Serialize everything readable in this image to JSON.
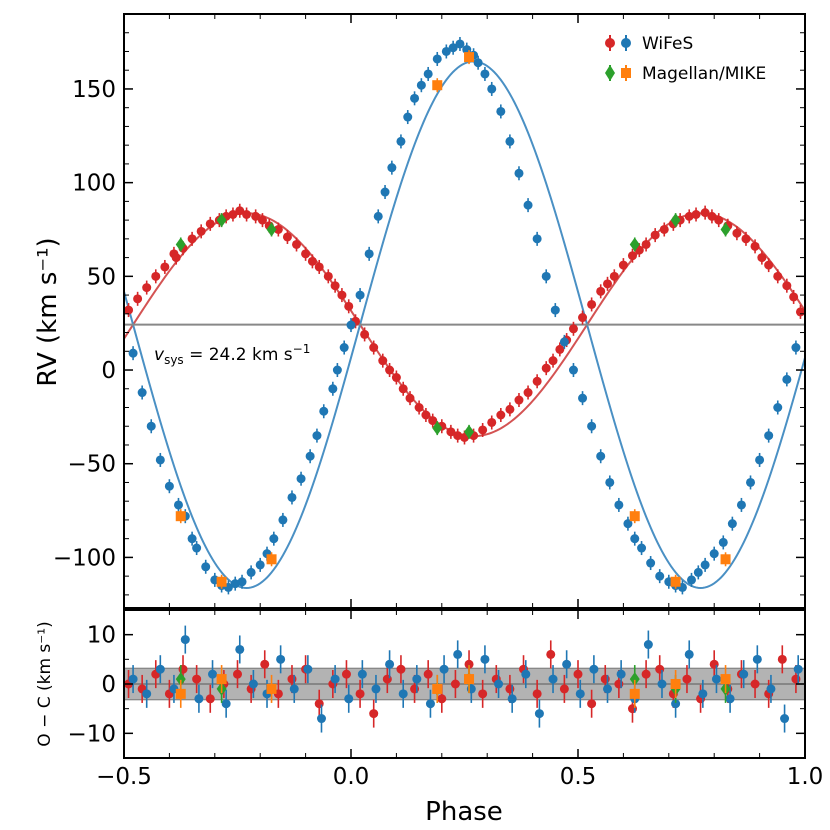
{
  "chart_data": [
    {
      "type": "scatter",
      "panel": "rv",
      "xlabel": "Phase",
      "ylabel": "RV (km s⁻¹)",
      "xlim": [
        -0.5,
        1.0
      ],
      "ylim": [
        -127,
        190
      ],
      "xticks": [
        -0.5,
        0.0,
        0.5,
        1.0
      ],
      "xtick_labels": [
        "−0.5",
        "0.0",
        "0.5",
        "1.0"
      ],
      "yticks": [
        -100,
        -50,
        0,
        50,
        100,
        150
      ],
      "ytick_labels": [
        "−100",
        "−50",
        "0",
        "50",
        "100",
        "150"
      ],
      "systemic_velocity": 24.2,
      "annotation": {
        "symbol": "v",
        "subscript": "sys",
        "text": " = 24.2 km s",
        "superscript": "−1"
      },
      "legend": {
        "position": "top-right",
        "entries": [
          {
            "label": "WiFeS",
            "markers": [
              "circle-red",
              "circle-blue"
            ]
          },
          {
            "label": "Magellan/MIKE",
            "markers": [
              "diamond-green",
              "square-orange"
            ]
          }
        ]
      },
      "model": {
        "primary": {
          "name": "Primary model (red)",
          "gamma": 24.2,
          "K": 59.5,
          "peak_phase": 0.77
        },
        "secondary": {
          "name": "Secondary model (blue)",
          "gamma": 24.2,
          "K": -140.5,
          "peak_phase": 0.77
        }
      },
      "series": [
        {
          "name": "WiFeS primary",
          "color": "#d62728",
          "marker": "circle",
          "x": [
            -0.49,
            -0.47,
            -0.45,
            -0.43,
            -0.41,
            -0.39,
            -0.385,
            -0.37,
            -0.35,
            -0.33,
            -0.31,
            -0.29,
            -0.275,
            -0.26,
            -0.245,
            -0.23,
            -0.21,
            -0.195,
            -0.18,
            -0.16,
            -0.14,
            -0.12,
            -0.1,
            -0.085,
            -0.07,
            -0.05,
            -0.035,
            -0.02,
            -0.005,
            0.01,
            0.03,
            0.05,
            0.07,
            0.085,
            0.1,
            0.115,
            0.13,
            0.15,
            0.165,
            0.18,
            0.2,
            0.22,
            0.235,
            0.25,
            0.27,
            0.29,
            0.31,
            0.33,
            0.35,
            0.37,
            0.39,
            0.41,
            0.43,
            0.445,
            0.46,
            0.475,
            0.49,
            0.51,
            0.53,
            0.55,
            0.565,
            0.58,
            0.6,
            0.62,
            0.635,
            0.65,
            0.67,
            0.69,
            0.71,
            0.725,
            0.745,
            0.76,
            0.78,
            0.795,
            0.81,
            0.83,
            0.85,
            0.87,
            0.89,
            0.905,
            0.92,
            0.94,
            0.96,
            0.975,
            0.99
          ],
          "y": [
            32,
            38,
            44,
            50,
            55,
            62,
            60,
            65,
            70,
            74,
            78,
            80,
            82,
            83,
            85,
            83,
            82,
            80,
            77,
            75,
            71,
            67,
            62,
            58,
            55,
            50,
            45,
            40,
            34,
            26,
            19,
            12,
            5,
            0,
            -4,
            -10,
            -15,
            -20,
            -24,
            -27,
            -30,
            -33,
            -35,
            -36,
            -35,
            -32,
            -28,
            -24,
            -21,
            -16,
            -12,
            -6,
            1,
            5,
            11,
            16,
            22,
            28,
            35,
            42,
            46,
            50,
            56,
            61,
            64,
            67,
            72,
            75,
            78,
            80,
            82,
            83,
            84,
            82,
            80,
            77,
            73,
            70,
            66,
            60,
            56,
            50,
            45,
            39,
            31
          ]
        },
        {
          "name": "WiFeS secondary",
          "color": "#1f77b4",
          "marker": "circle",
          "x": [
            -0.48,
            -0.46,
            -0.44,
            -0.42,
            -0.4,
            -0.38,
            -0.365,
            -0.35,
            -0.34,
            -0.32,
            -0.3,
            -0.285,
            -0.27,
            -0.255,
            -0.24,
            -0.22,
            -0.2,
            -0.185,
            -0.17,
            -0.15,
            -0.13,
            -0.11,
            -0.09,
            -0.075,
            -0.06,
            -0.04,
            -0.03,
            -0.015,
            0.0,
            0.02,
            0.04,
            0.06,
            0.075,
            0.09,
            0.11,
            0.125,
            0.14,
            0.155,
            0.17,
            0.19,
            0.21,
            0.225,
            0.24,
            0.255,
            0.27,
            0.28,
            0.295,
            0.31,
            0.33,
            0.35,
            0.37,
            0.39,
            0.41,
            0.43,
            0.45,
            0.47,
            0.49,
            0.51,
            0.53,
            0.55,
            0.57,
            0.59,
            0.61,
            0.625,
            0.64,
            0.66,
            0.68,
            0.7,
            0.715,
            0.73,
            0.75,
            0.765,
            0.78,
            0.8,
            0.82,
            0.84,
            0.86,
            0.88,
            0.9,
            0.92,
            0.94,
            0.96,
            0.98
          ],
          "y": [
            9,
            -12,
            -30,
            -48,
            -62,
            -72,
            -78,
            -90,
            -95,
            -105,
            -112,
            -115,
            -116,
            -114,
            -113,
            -108,
            -104,
            -98,
            -90,
            -80,
            -68,
            -58,
            -46,
            -35,
            -22,
            -10,
            0,
            12,
            24,
            40,
            62,
            82,
            95,
            108,
            122,
            135,
            145,
            152,
            158,
            166,
            170,
            172,
            174,
            171,
            168,
            164,
            158,
            150,
            138,
            122,
            105,
            88,
            70,
            50,
            32,
            15,
            0,
            -15,
            -30,
            -46,
            -60,
            -72,
            -82,
            -90,
            -95,
            -103,
            -110,
            -113,
            -115,
            -116,
            -112,
            -108,
            -104,
            -98,
            -92,
            -82,
            -72,
            -60,
            -48,
            -35,
            -20,
            -5,
            12
          ]
        },
        {
          "name": "Magellan/MIKE primary",
          "color": "#2ca02c",
          "marker": "diamond",
          "x": [
            -0.375,
            -0.285,
            -0.175,
            0.19,
            0.26,
            0.625,
            0.715,
            0.825
          ],
          "y": [
            67,
            80,
            75,
            -31,
            -33,
            67,
            80,
            75
          ]
        },
        {
          "name": "Magellan/MIKE secondary",
          "color": "#ff7f0e",
          "marker": "square",
          "x": [
            -0.375,
            -0.285,
            -0.175,
            0.19,
            0.26,
            0.625,
            0.715,
            0.825
          ],
          "y": [
            -78,
            -113,
            -101,
            152,
            167,
            -78,
            -113,
            -101
          ]
        }
      ]
    },
    {
      "type": "scatter",
      "panel": "residuals",
      "xlabel": "Phase",
      "ylabel": "O − C (km s⁻¹)",
      "xlim": [
        -0.5,
        1.0
      ],
      "ylim": [
        -15,
        15
      ],
      "yticks": [
        -10,
        0,
        10
      ],
      "ytick_labels": [
        "−10",
        "0",
        "10"
      ],
      "band": [
        -3.2,
        3.2
      ],
      "series": [
        {
          "name": "WiFeS primary residuals",
          "color": "#d62728",
          "marker": "circle",
          "x": [
            -0.49,
            -0.46,
            -0.43,
            -0.4,
            -0.37,
            -0.34,
            -0.31,
            -0.28,
            -0.25,
            -0.22,
            -0.19,
            -0.16,
            -0.13,
            -0.1,
            -0.07,
            -0.04,
            -0.01,
            0.02,
            0.05,
            0.08,
            0.11,
            0.14,
            0.17,
            0.2,
            0.23,
            0.26,
            0.29,
            0.32,
            0.35,
            0.38,
            0.41,
            0.44,
            0.47,
            0.5,
            0.53,
            0.56,
            0.59,
            0.62,
            0.65,
            0.68,
            0.71,
            0.74,
            0.77,
            0.8,
            0.83,
            0.86,
            0.89,
            0.92,
            0.95,
            0.98
          ],
          "y": [
            0,
            -1,
            2,
            -2,
            3,
            1,
            -3,
            0,
            2,
            -1,
            4,
            -2,
            1,
            3,
            -4,
            0,
            2,
            -2,
            -6,
            1,
            3,
            -1,
            2,
            -3,
            0,
            4,
            -2,
            1,
            -1,
            3,
            -2,
            6,
            -1,
            2,
            -4,
            1,
            0,
            -5,
            2,
            3,
            -2,
            1,
            -3,
            4,
            -1,
            2,
            0,
            -2,
            5,
            1
          ]
        },
        {
          "name": "WiFeS secondary residuals",
          "color": "#1f77b4",
          "marker": "circle",
          "x": [
            -0.48,
            -0.45,
            -0.42,
            -0.39,
            -0.365,
            -0.335,
            -0.305,
            -0.275,
            -0.245,
            -0.215,
            -0.185,
            -0.155,
            -0.125,
            -0.095,
            -0.065,
            -0.035,
            -0.005,
            0.025,
            0.055,
            0.085,
            0.115,
            0.145,
            0.175,
            0.205,
            0.235,
            0.265,
            0.295,
            0.325,
            0.355,
            0.385,
            0.415,
            0.445,
            0.475,
            0.505,
            0.535,
            0.565,
            0.595,
            0.625,
            0.655,
            0.685,
            0.715,
            0.745,
            0.775,
            0.805,
            0.835,
            0.865,
            0.895,
            0.925,
            0.955,
            0.985
          ],
          "y": [
            1,
            -2,
            3,
            -1,
            9,
            -3,
            2,
            -4,
            7,
            0,
            -2,
            5,
            -1,
            3,
            -7,
            1,
            -3,
            2,
            -1,
            4,
            -2,
            1,
            -4,
            3,
            6,
            -1,
            5,
            0,
            -3,
            2,
            -6,
            1,
            4,
            -2,
            3,
            -1,
            2,
            -3,
            8,
            0,
            -4,
            6,
            -2,
            1,
            -3,
            2,
            5,
            -1,
            -7,
            3
          ]
        },
        {
          "name": "Magellan/MIKE primary residuals",
          "color": "#2ca02c",
          "marker": "diamond",
          "x": [
            -0.375,
            -0.285,
            0.19,
            0.26,
            0.625,
            0.715,
            0.825
          ],
          "y": [
            1,
            -1,
            -1,
            1,
            1,
            -1,
            -1
          ]
        },
        {
          "name": "Magellan/MIKE secondary residuals",
          "color": "#ff7f0e",
          "marker": "square",
          "x": [
            -0.375,
            -0.285,
            -0.175,
            0.19,
            0.26,
            0.625,
            0.715,
            0.825
          ],
          "y": [
            -2,
            1,
            -1,
            -1,
            1,
            -2,
            0,
            1
          ]
        }
      ]
    }
  ]
}
